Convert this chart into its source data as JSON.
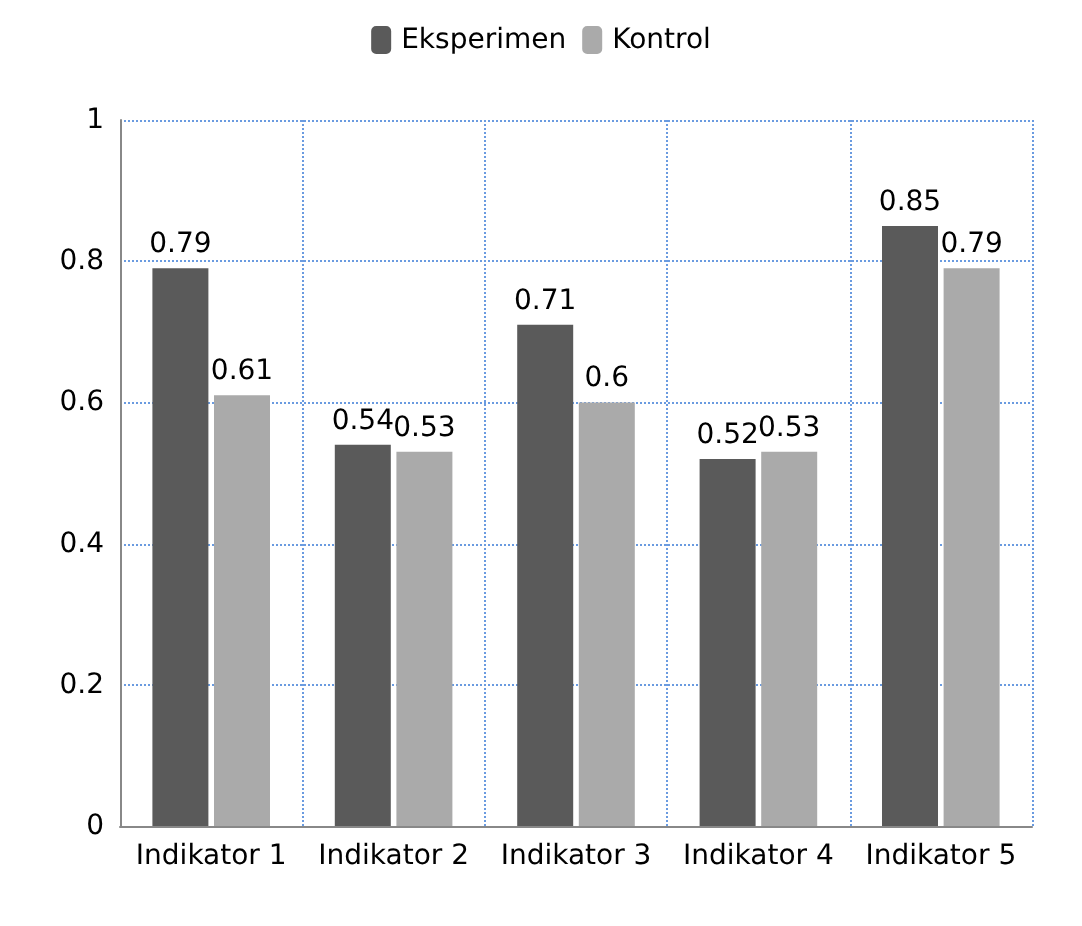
{
  "chart_data": {
    "type": "bar",
    "categories": [
      "Indikator 1",
      "Indikator 2",
      "Indikator 3",
      "Indikator 4",
      "Indikator 5"
    ],
    "series": [
      {
        "name": "Eksperimen",
        "color": "#5a5a5a",
        "values": [
          0.79,
          0.54,
          0.71,
          0.52,
          0.85
        ]
      },
      {
        "name": "Kontrol",
        "color": "#aaaaaa",
        "values": [
          0.61,
          0.53,
          0.6,
          0.53,
          0.79
        ]
      }
    ],
    "ylim": [
      0,
      1
    ],
    "yticks": [
      0,
      0.2,
      0.4,
      0.6,
      0.8,
      1
    ],
    "data_labels": true,
    "grid": true,
    "legend": "top"
  }
}
